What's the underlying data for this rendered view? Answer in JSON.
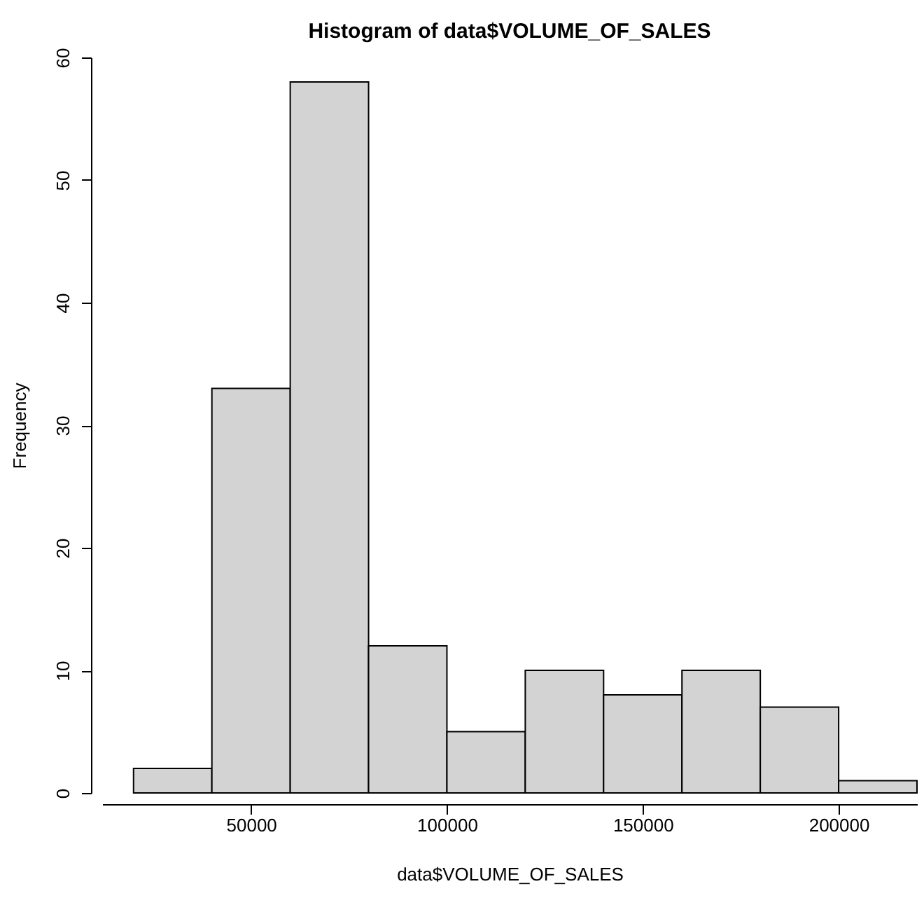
{
  "chart_data": {
    "type": "histogram",
    "title": "Histogram of data$VOLUME_OF_SALES",
    "xlabel": "data$VOLUME_OF_SALES",
    "ylabel": "Frequency",
    "bins": [
      20000,
      40000,
      60000,
      80000,
      100000,
      120000,
      140000,
      160000,
      180000,
      200000,
      220000
    ],
    "values": [
      2,
      33,
      58,
      12,
      5,
      10,
      8,
      10,
      7,
      1
    ],
    "color": "#d3d3d3",
    "xlim": [
      12000,
      220000
    ],
    "xticks": [
      50000,
      100000,
      150000,
      200000
    ],
    "ylim": [
      0,
      60
    ],
    "yticks": [
      0,
      10,
      20,
      30,
      40,
      50,
      60
    ],
    "grid": false
  }
}
